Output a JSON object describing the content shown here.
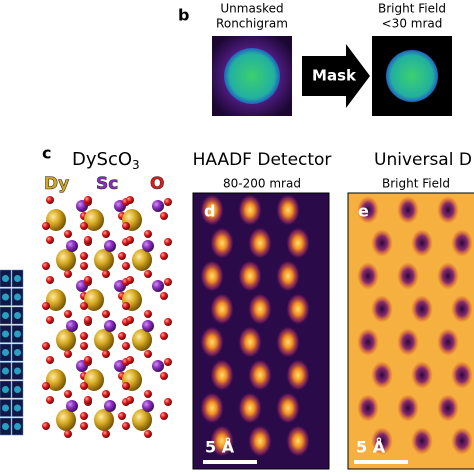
{
  "panel_b": {
    "label": "b",
    "left_caption": [
      "Unmasked",
      "Ronchigram"
    ],
    "arrow_label": "Mask",
    "right_caption": [
      "Bright Field",
      "<30 mrad"
    ]
  },
  "panel_c": {
    "label": "c",
    "formula": "DyScO",
    "formula_subscript": "3",
    "legend": [
      "Dy",
      "Sc",
      "O"
    ]
  },
  "panel_d": {
    "title": "HAADF Detector",
    "subtitle": "80-200 mrad",
    "label": "d",
    "scale_bar": "5 Å"
  },
  "panel_e": {
    "title": "Universal D",
    "subtitle": "Bright Field",
    "label": "e",
    "scale_bar": "5 Å"
  }
}
